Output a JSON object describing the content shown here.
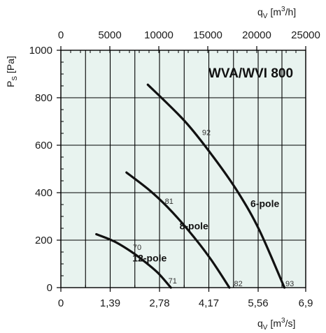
{
  "chart_data": {
    "type": "line",
    "title": "WVA/WVI 800",
    "ylabel": {
      "main": "P",
      "sub": "S",
      "unit": "[Pa]"
    },
    "xlabel_bottom": {
      "main": "q",
      "sub": "V",
      "unit_pre": "[m",
      "unit_sup": "3",
      "unit_post": "/s]"
    },
    "xlabel_top": {
      "main": "q",
      "sub": "V",
      "unit_pre": "[m",
      "unit_sup": "3",
      "unit_post": "/h]"
    },
    "xlim_bottom": [
      0,
      6.9
    ],
    "xlim_top": [
      0,
      25000
    ],
    "ylim": [
      0,
      1000
    ],
    "bottom_ticks": [
      0,
      1.39,
      2.78,
      4.17,
      5.56,
      6.9
    ],
    "bottom_tick_labels": [
      "0",
      "1,39",
      "2,78",
      "4,17",
      "5,56",
      "6,9"
    ],
    "top_ticks": [
      0,
      5000,
      10000,
      15000,
      20000,
      25000
    ],
    "top_tick_labels": [
      "0",
      "5000",
      "10000",
      "15000",
      "20000",
      "25000"
    ],
    "y_ticks": [
      0,
      200,
      400,
      600,
      800,
      1000
    ],
    "y_tick_labels": [
      "0",
      "200",
      "400",
      "600",
      "800",
      "1000"
    ],
    "grid": true,
    "background": "#e8f3ef",
    "line_color": "#111111",
    "series": [
      {
        "name": "12-pole",
        "label_at": {
          "x": 2.5,
          "y": 125
        },
        "x": [
          1.0,
          1.5,
          2.0,
          2.4,
          2.75,
          3.1
        ],
        "y": [
          225,
          195,
          150,
          105,
          60,
          0
        ],
        "efficiency_marks": [
          {
            "label": "70",
            "x": 2.15,
            "y": 170
          },
          {
            "label": "71",
            "x": 3.15,
            "y": 30
          }
        ]
      },
      {
        "name": "8-pole",
        "label_at": {
          "x": 3.75,
          "y": 260
        },
        "x": [
          1.85,
          2.5,
          3.0,
          3.6,
          4.2,
          4.75
        ],
        "y": [
          485,
          410,
          340,
          240,
          125,
          0
        ],
        "efficiency_marks": [
          {
            "label": "81",
            "x": 3.05,
            "y": 365
          },
          {
            "label": "82",
            "x": 5.0,
            "y": 18
          }
        ]
      },
      {
        "name": "6-pole",
        "label_at": {
          "x": 5.75,
          "y": 355
        },
        "x": [
          2.45,
          3.5,
          4.3,
          5.0,
          5.6,
          6.3
        ],
        "y": [
          855,
          700,
          550,
          400,
          240,
          0
        ],
        "efficiency_marks": [
          {
            "label": "92",
            "x": 4.1,
            "y": 655
          },
          {
            "label": "93",
            "x": 6.45,
            "y": 18
          }
        ]
      }
    ]
  }
}
